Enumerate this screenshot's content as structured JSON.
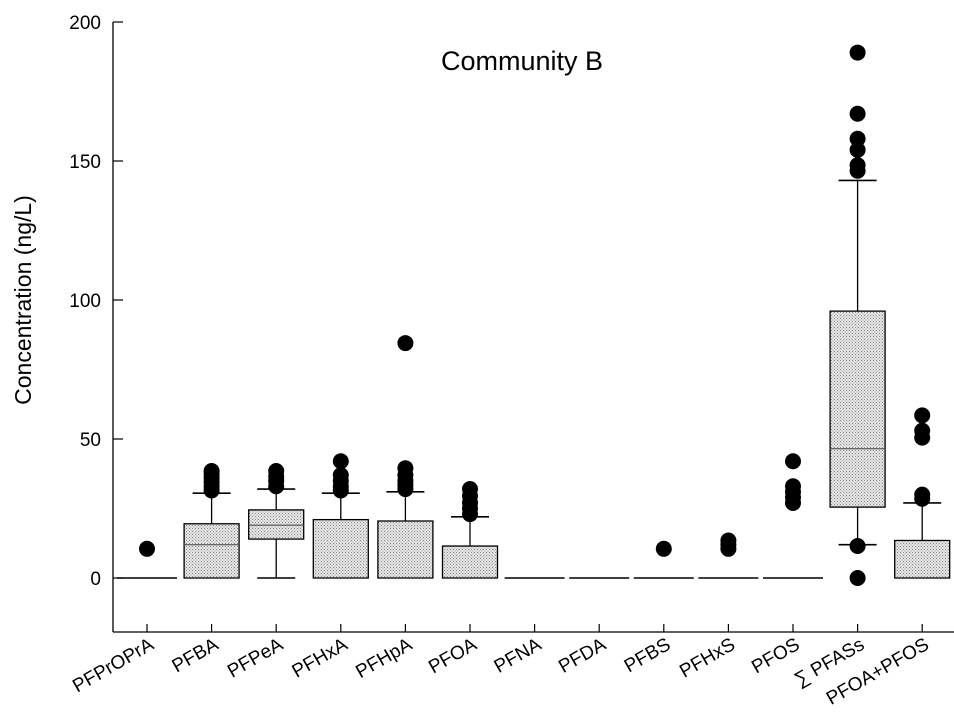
{
  "chart_data": {
    "type": "box",
    "title": "Community B",
    "xlabel": "",
    "ylabel": "Concentration (ng/L)",
    "ylim": [
      -20,
      200
    ],
    "yticks": [
      0,
      50,
      100,
      150,
      200
    ],
    "grid": false,
    "legend": "none",
    "categories": [
      "PFPrOPrA",
      "PFBA",
      "PFPeA",
      "PFHxA",
      "PFHpA",
      "PFOA",
      "PFNA",
      "PFDA",
      "PFBS",
      "PFHxS",
      "PFOS",
      "∑ PFASs",
      "PFOA+PFOS"
    ],
    "boxes": [
      {
        "category": "PFPrOPrA",
        "min": 0,
        "q1": 0,
        "median": 0,
        "q3": 0,
        "max": 0,
        "outliers": [
          10.5
        ]
      },
      {
        "category": "PFBA",
        "min": 0,
        "q1": 0,
        "median": 12,
        "q3": 19.5,
        "max": 30.5,
        "outliers": [
          31.5,
          33,
          34.5,
          36,
          37.5,
          38.5
        ]
      },
      {
        "category": "PFPeA",
        "min": 0,
        "q1": 14,
        "median": 19,
        "q3": 24.5,
        "max": 32,
        "outliers": [
          33,
          35,
          36.5,
          38.5
        ]
      },
      {
        "category": "PFHxA",
        "min": 0,
        "q1": 0,
        "median": 0,
        "q3": 21,
        "max": 30.5,
        "outliers": [
          31.5,
          33,
          35,
          37,
          42
        ]
      },
      {
        "category": "PFHpA",
        "min": 0,
        "q1": 0,
        "median": 0,
        "q3": 20.5,
        "max": 31,
        "outliers": [
          32,
          33.5,
          35,
          37,
          39.5,
          84.5
        ]
      },
      {
        "category": "PFOA",
        "min": 0,
        "q1": 0,
        "median": 0,
        "q3": 11.5,
        "max": 22,
        "outliers": [
          23,
          25,
          27,
          29.5,
          32
        ]
      },
      {
        "category": "PFNA",
        "min": 0,
        "q1": 0,
        "median": 0,
        "q3": 0,
        "max": 0,
        "outliers": []
      },
      {
        "category": "PFDA",
        "min": 0,
        "q1": 0,
        "median": 0,
        "q3": 0,
        "max": 0,
        "outliers": []
      },
      {
        "category": "PFBS",
        "min": 0,
        "q1": 0,
        "median": 0,
        "q3": 0,
        "max": 0,
        "outliers": [
          10.5
        ]
      },
      {
        "category": "PFHxS",
        "min": 0,
        "q1": 0,
        "median": 0,
        "q3": 0,
        "max": 0,
        "outliers": [
          10.5,
          12,
          13.5
        ]
      },
      {
        "category": "PFOS",
        "min": 0,
        "q1": 0,
        "median": 0,
        "q3": 0,
        "max": 0,
        "outliers": [
          27,
          29,
          31,
          33,
          42
        ]
      },
      {
        "category": "∑ PFASs",
        "min": 12,
        "q1": 25.5,
        "median": 46.5,
        "q3": 96,
        "max": 143,
        "outliers": [
          0,
          11.5,
          146.5,
          148.5,
          154,
          158,
          167,
          189
        ]
      },
      {
        "category": "PFOA+PFOS",
        "min": 0,
        "q1": 0,
        "median": 0,
        "q3": 13.5,
        "max": 27,
        "outliers": [
          28.5,
          30,
          50.5,
          53,
          58.5
        ]
      }
    ]
  }
}
